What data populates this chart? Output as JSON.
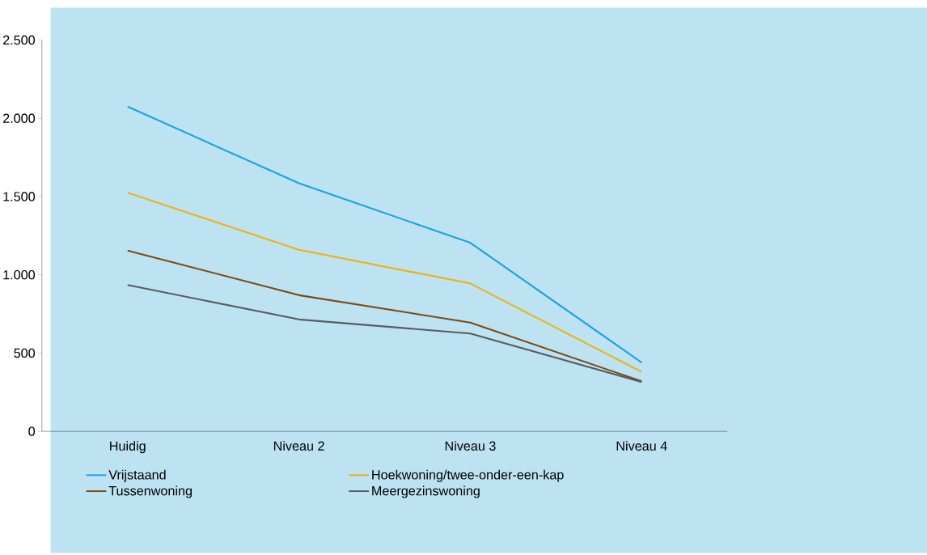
{
  "chart_data": {
    "type": "line",
    "categories": [
      "Huidig",
      "Niveau 2",
      "Niveau 3",
      "Niveau 4"
    ],
    "series": [
      {
        "name": "Vrijstaand",
        "color": "#1aa3e0",
        "values": [
          2075,
          1585,
          1205,
          440
        ]
      },
      {
        "name": "Hoekwoning/twee-onder-een-kap",
        "color": "#eeb111",
        "values": [
          1525,
          1160,
          945,
          380
        ]
      },
      {
        "name": "Tussenwoning",
        "color": "#7a4a12",
        "values": [
          1155,
          870,
          695,
          320
        ]
      },
      {
        "name": "Meergezinswoning",
        "color": "#575c63",
        "values": [
          935,
          715,
          625,
          315
        ]
      }
    ],
    "ylim": [
      0,
      2500
    ],
    "yticks": [
      {
        "value": 0,
        "label": "0"
      },
      {
        "value": 500,
        "label": "500"
      },
      {
        "value": 1000,
        "label": "1.000"
      },
      {
        "value": 1500,
        "label": "1.500"
      },
      {
        "value": 2000,
        "label": "2.000"
      },
      {
        "value": 2500,
        "label": "2.500"
      }
    ],
    "legend": "bottom",
    "marker": "none",
    "line_style": "solid"
  }
}
